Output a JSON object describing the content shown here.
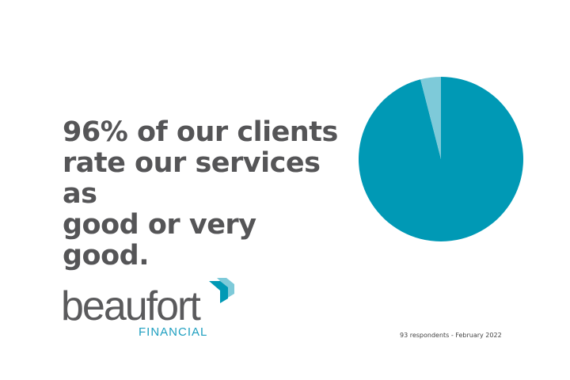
{
  "headline": {
    "line1": "96% of our clients",
    "line2": "rate our services as",
    "line3": "good or very good."
  },
  "logo": {
    "word": "beaufort",
    "sub": "FINANCIAL"
  },
  "footnote": "93 respondents - February 2022",
  "colors": {
    "primary": "#0099b5",
    "secondary": "#7ecad9",
    "text": "#555557"
  },
  "chart_data": {
    "type": "pie",
    "slices": [
      {
        "value": 96,
        "color": "#0099b5"
      },
      {
        "value": 4,
        "color": "#7ecad9"
      }
    ],
    "start": "top",
    "direction": "clockwise"
  }
}
